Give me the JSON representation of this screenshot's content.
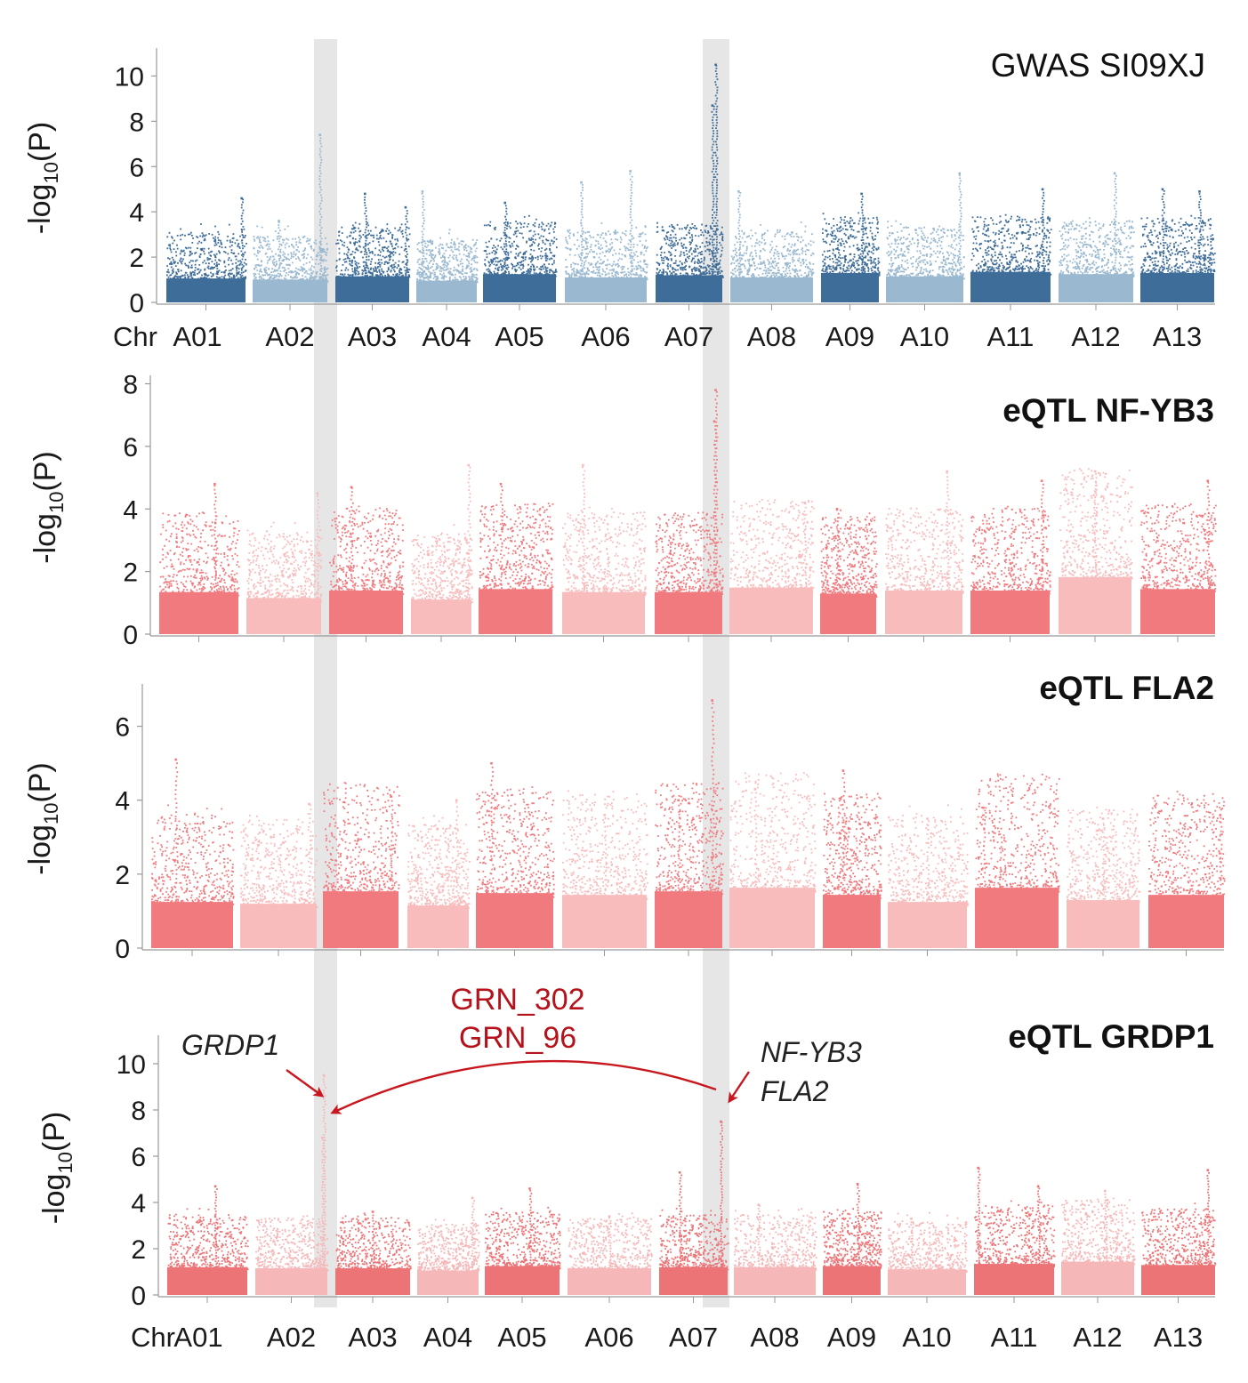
{
  "figure": {
    "axis_title": "-log",
    "axis_title_sub": "10",
    "axis_title_tail": "(P)",
    "chr_prefix": "Chr"
  },
  "chart_data": [
    {
      "type": "scatter",
      "subtype": "manhattan",
      "title": "GWAS SI09XJ",
      "title_bold": false,
      "ylabel": "-log10(P)",
      "ylim": [
        0,
        11
      ],
      "yticks": [
        0,
        2,
        4,
        6,
        8,
        10
      ],
      "show_chr_labels": true,
      "colors": {
        "dark": "#3f6d99",
        "light": "#9ab9d0"
      },
      "chromosomes": [
        "A01",
        "A02",
        "A03",
        "A04",
        "A05",
        "A06",
        "A07",
        "A08",
        "A09",
        "A10",
        "A11",
        "A12",
        "A13"
      ],
      "series": [
        {
          "name": "A01",
          "base": 2.2,
          "peaks": [
            {
              "pos": 0.95,
              "value": 4.6
            }
          ]
        },
        {
          "name": "A02",
          "base": 2.1,
          "peaks": [
            {
              "pos": 0.9,
              "value": 7.4
            },
            {
              "pos": 0.35,
              "value": 3.6
            }
          ]
        },
        {
          "name": "A03",
          "base": 2.4,
          "peaks": [
            {
              "pos": 0.4,
              "value": 4.8
            },
            {
              "pos": 0.95,
              "value": 4.2
            }
          ]
        },
        {
          "name": "A04",
          "base": 2.0,
          "peaks": [
            {
              "pos": 0.1,
              "value": 4.9
            }
          ]
        },
        {
          "name": "A05",
          "base": 2.6,
          "peaks": [
            {
              "pos": 0.3,
              "value": 4.4
            }
          ]
        },
        {
          "name": "A06",
          "base": 2.3,
          "peaks": [
            {
              "pos": 0.2,
              "value": 5.3
            },
            {
              "pos": 0.8,
              "value": 5.8
            }
          ]
        },
        {
          "name": "A07",
          "base": 2.5,
          "peaks": [
            {
              "pos": 0.9,
              "value": 10.5
            },
            {
              "pos": 0.85,
              "value": 8.7
            }
          ]
        },
        {
          "name": "A08",
          "base": 2.3,
          "peaks": [
            {
              "pos": 0.1,
              "value": 4.9
            }
          ]
        },
        {
          "name": "A09",
          "base": 2.7,
          "peaks": [
            {
              "pos": 0.7,
              "value": 4.8
            }
          ]
        },
        {
          "name": "A10",
          "base": 2.4,
          "peaks": [
            {
              "pos": 0.95,
              "value": 5.7
            }
          ]
        },
        {
          "name": "A11",
          "base": 2.8,
          "peaks": [
            {
              "pos": 0.9,
              "value": 5.0
            }
          ]
        },
        {
          "name": "A12",
          "base": 2.6,
          "peaks": [
            {
              "pos": 0.75,
              "value": 5.7
            }
          ]
        },
        {
          "name": "A13",
          "base": 2.7,
          "peaks": [
            {
              "pos": 0.3,
              "value": 5.0
            },
            {
              "pos": 0.8,
              "value": 4.9
            }
          ]
        }
      ]
    },
    {
      "type": "scatter",
      "subtype": "manhattan",
      "title": "eQTL NF-YB3",
      "title_bold": true,
      "ylabel": "-log10(P)",
      "ylim": [
        0,
        8.1
      ],
      "yticks": [
        0,
        2,
        4,
        6,
        8
      ],
      "show_chr_labels": false,
      "colors": {
        "dark": "#f07a7e",
        "light": "#f8bcbd"
      },
      "chromosomes": [
        "A01",
        "A02",
        "A03",
        "A04",
        "A05",
        "A06",
        "A07",
        "A08",
        "A09",
        "A10",
        "A11",
        "A12",
        "A13"
      ],
      "series": [
        {
          "name": "A01",
          "base": 2.8,
          "peaks": [
            {
              "pos": 0.7,
              "value": 4.8
            }
          ]
        },
        {
          "name": "A02",
          "base": 2.4,
          "peaks": [
            {
              "pos": 0.95,
              "value": 4.5
            }
          ]
        },
        {
          "name": "A03",
          "base": 2.9,
          "peaks": [
            {
              "pos": 0.3,
              "value": 4.7
            }
          ]
        },
        {
          "name": "A04",
          "base": 2.3,
          "peaks": [
            {
              "pos": 0.95,
              "value": 5.4
            }
          ]
        },
        {
          "name": "A05",
          "base": 3.0,
          "peaks": [
            {
              "pos": 0.3,
              "value": 4.8
            }
          ]
        },
        {
          "name": "A06",
          "base": 2.8,
          "peaks": [
            {
              "pos": 0.25,
              "value": 5.4
            }
          ]
        },
        {
          "name": "A07",
          "base": 2.8,
          "peaks": [
            {
              "pos": 0.9,
              "value": 7.8
            },
            {
              "pos": 0.88,
              "value": 6.8
            }
          ]
        },
        {
          "name": "A08",
          "base": 3.1,
          "peaks": [
            {
              "pos": 0.9,
              "value": 4.2
            }
          ]
        },
        {
          "name": "A09",
          "base": 2.7,
          "peaks": [
            {
              "pos": 0.3,
              "value": 4.0
            }
          ]
        },
        {
          "name": "A10",
          "base": 2.9,
          "peaks": [
            {
              "pos": 0.8,
              "value": 5.2
            }
          ]
        },
        {
          "name": "A11",
          "base": 2.9,
          "peaks": [
            {
              "pos": 0.9,
              "value": 4.9
            }
          ]
        },
        {
          "name": "A12",
          "base": 3.8,
          "peaks": [
            {
              "pos": 0.5,
              "value": 5.2
            }
          ]
        },
        {
          "name": "A13",
          "base": 3.0,
          "peaks": [
            {
              "pos": 0.9,
              "value": 4.9
            }
          ]
        }
      ]
    },
    {
      "type": "scatter",
      "subtype": "manhattan",
      "title": "eQTL FLA2",
      "title_bold": true,
      "ylabel": "-log10(P)",
      "ylim": [
        0,
        7
      ],
      "yticks": [
        0,
        2,
        4,
        6
      ],
      "show_chr_labels": false,
      "colors": {
        "dark": "#f07a7e",
        "light": "#f8bcbd"
      },
      "chromosomes": [
        "A01",
        "A02",
        "A03",
        "A04",
        "A05",
        "A06",
        "A07",
        "A08",
        "A09",
        "A10",
        "A11",
        "A12",
        "A13"
      ],
      "series": [
        {
          "name": "A01",
          "base": 2.6,
          "peaks": [
            {
              "pos": 0.3,
              "value": 5.1
            }
          ]
        },
        {
          "name": "A02",
          "base": 2.5,
          "peaks": [
            {
              "pos": 0.9,
              "value": 3.9
            }
          ]
        },
        {
          "name": "A03",
          "base": 3.2,
          "peaks": [
            {
              "pos": 0.9,
              "value": 4.1
            }
          ]
        },
        {
          "name": "A04",
          "base": 2.4,
          "peaks": [
            {
              "pos": 0.8,
              "value": 4.0
            }
          ]
        },
        {
          "name": "A05",
          "base": 3.1,
          "peaks": [
            {
              "pos": 0.2,
              "value": 5.0
            }
          ]
        },
        {
          "name": "A06",
          "base": 3.0,
          "peaks": [
            {
              "pos": 0.5,
              "value": 3.6
            }
          ]
        },
        {
          "name": "A07",
          "base": 3.2,
          "peaks": [
            {
              "pos": 0.85,
              "value": 6.7
            },
            {
              "pos": 0.35,
              "value": 4.0
            }
          ]
        },
        {
          "name": "A08",
          "base": 3.4,
          "peaks": [
            {
              "pos": 0.3,
              "value": 4.3
            }
          ]
        },
        {
          "name": "A09",
          "base": 3.0,
          "peaks": [
            {
              "pos": 0.35,
              "value": 4.8
            }
          ]
        },
        {
          "name": "A10",
          "base": 2.6,
          "peaks": [
            {
              "pos": 0.5,
              "value": 3.5
            }
          ]
        },
        {
          "name": "A11",
          "base": 3.4,
          "peaks": [
            {
              "pos": 0.1,
              "value": 3.8
            }
          ]
        },
        {
          "name": "A12",
          "base": 2.7,
          "peaks": [
            {
              "pos": 0.5,
              "value": 3.5
            }
          ]
        },
        {
          "name": "A13",
          "base": 3.0,
          "peaks": [
            {
              "pos": 0.95,
              "value": 3.6
            }
          ]
        }
      ]
    },
    {
      "type": "scatter",
      "subtype": "manhattan",
      "title": "eQTL GRDP1",
      "title_bold": true,
      "ylabel": "-log10(P)",
      "ylim": [
        0,
        11
      ],
      "yticks": [
        0,
        2,
        4,
        6,
        8,
        10
      ],
      "show_chr_labels": true,
      "colors": {
        "dark": "#ec7476",
        "light": "#f6b7b8"
      },
      "chromosomes": [
        "A01",
        "A02",
        "A03",
        "A04",
        "A05",
        "A06",
        "A07",
        "A08",
        "A09",
        "A10",
        "A11",
        "A12",
        "A13"
      ],
      "series": [
        {
          "name": "A01",
          "base": 2.5,
          "peaks": [
            {
              "pos": 0.6,
              "value": 4.7
            }
          ]
        },
        {
          "name": "A02",
          "base": 2.4,
          "peaks": [
            {
              "pos": 0.95,
              "value": 9.5
            },
            {
              "pos": 0.93,
              "value": 6.8
            }
          ]
        },
        {
          "name": "A03",
          "base": 2.4,
          "peaks": [
            {
              "pos": 0.5,
              "value": 3.6
            }
          ]
        },
        {
          "name": "A04",
          "base": 2.2,
          "peaks": [
            {
              "pos": 0.9,
              "value": 4.2
            }
          ]
        },
        {
          "name": "A05",
          "base": 2.6,
          "peaks": [
            {
              "pos": 0.6,
              "value": 4.6
            }
          ]
        },
        {
          "name": "A06",
          "base": 2.4,
          "peaks": [
            {
              "pos": 0.5,
              "value": 3.4
            }
          ]
        },
        {
          "name": "A07",
          "base": 2.5,
          "peaks": [
            {
              "pos": 0.9,
              "value": 7.5
            },
            {
              "pos": 0.3,
              "value": 5.3
            }
          ]
        },
        {
          "name": "A08",
          "base": 2.5,
          "peaks": [
            {
              "pos": 0.3,
              "value": 3.9
            }
          ]
        },
        {
          "name": "A09",
          "base": 2.6,
          "peaks": [
            {
              "pos": 0.6,
              "value": 4.8
            }
          ]
        },
        {
          "name": "A10",
          "base": 2.3,
          "peaks": [
            {
              "pos": 0.3,
              "value": 3.3
            }
          ]
        },
        {
          "name": "A11",
          "base": 2.8,
          "peaks": [
            {
              "pos": 0.05,
              "value": 5.5
            },
            {
              "pos": 0.8,
              "value": 4.7
            }
          ]
        },
        {
          "name": "A12",
          "base": 3.0,
          "peaks": [
            {
              "pos": 0.6,
              "value": 4.5
            }
          ]
        },
        {
          "name": "A13",
          "base": 2.7,
          "peaks": [
            {
              "pos": 0.9,
              "value": 5.4
            }
          ]
        }
      ]
    }
  ],
  "annotations": {
    "grn_line1": "GRN_302",
    "grn_line2": "GRN_96",
    "gene_left": "GRDP1",
    "gene_right_1": "NF-YB3",
    "gene_right_2": "FLA2",
    "highlight_color": "#dcdcdc",
    "arrow_color": "#c8171e"
  }
}
